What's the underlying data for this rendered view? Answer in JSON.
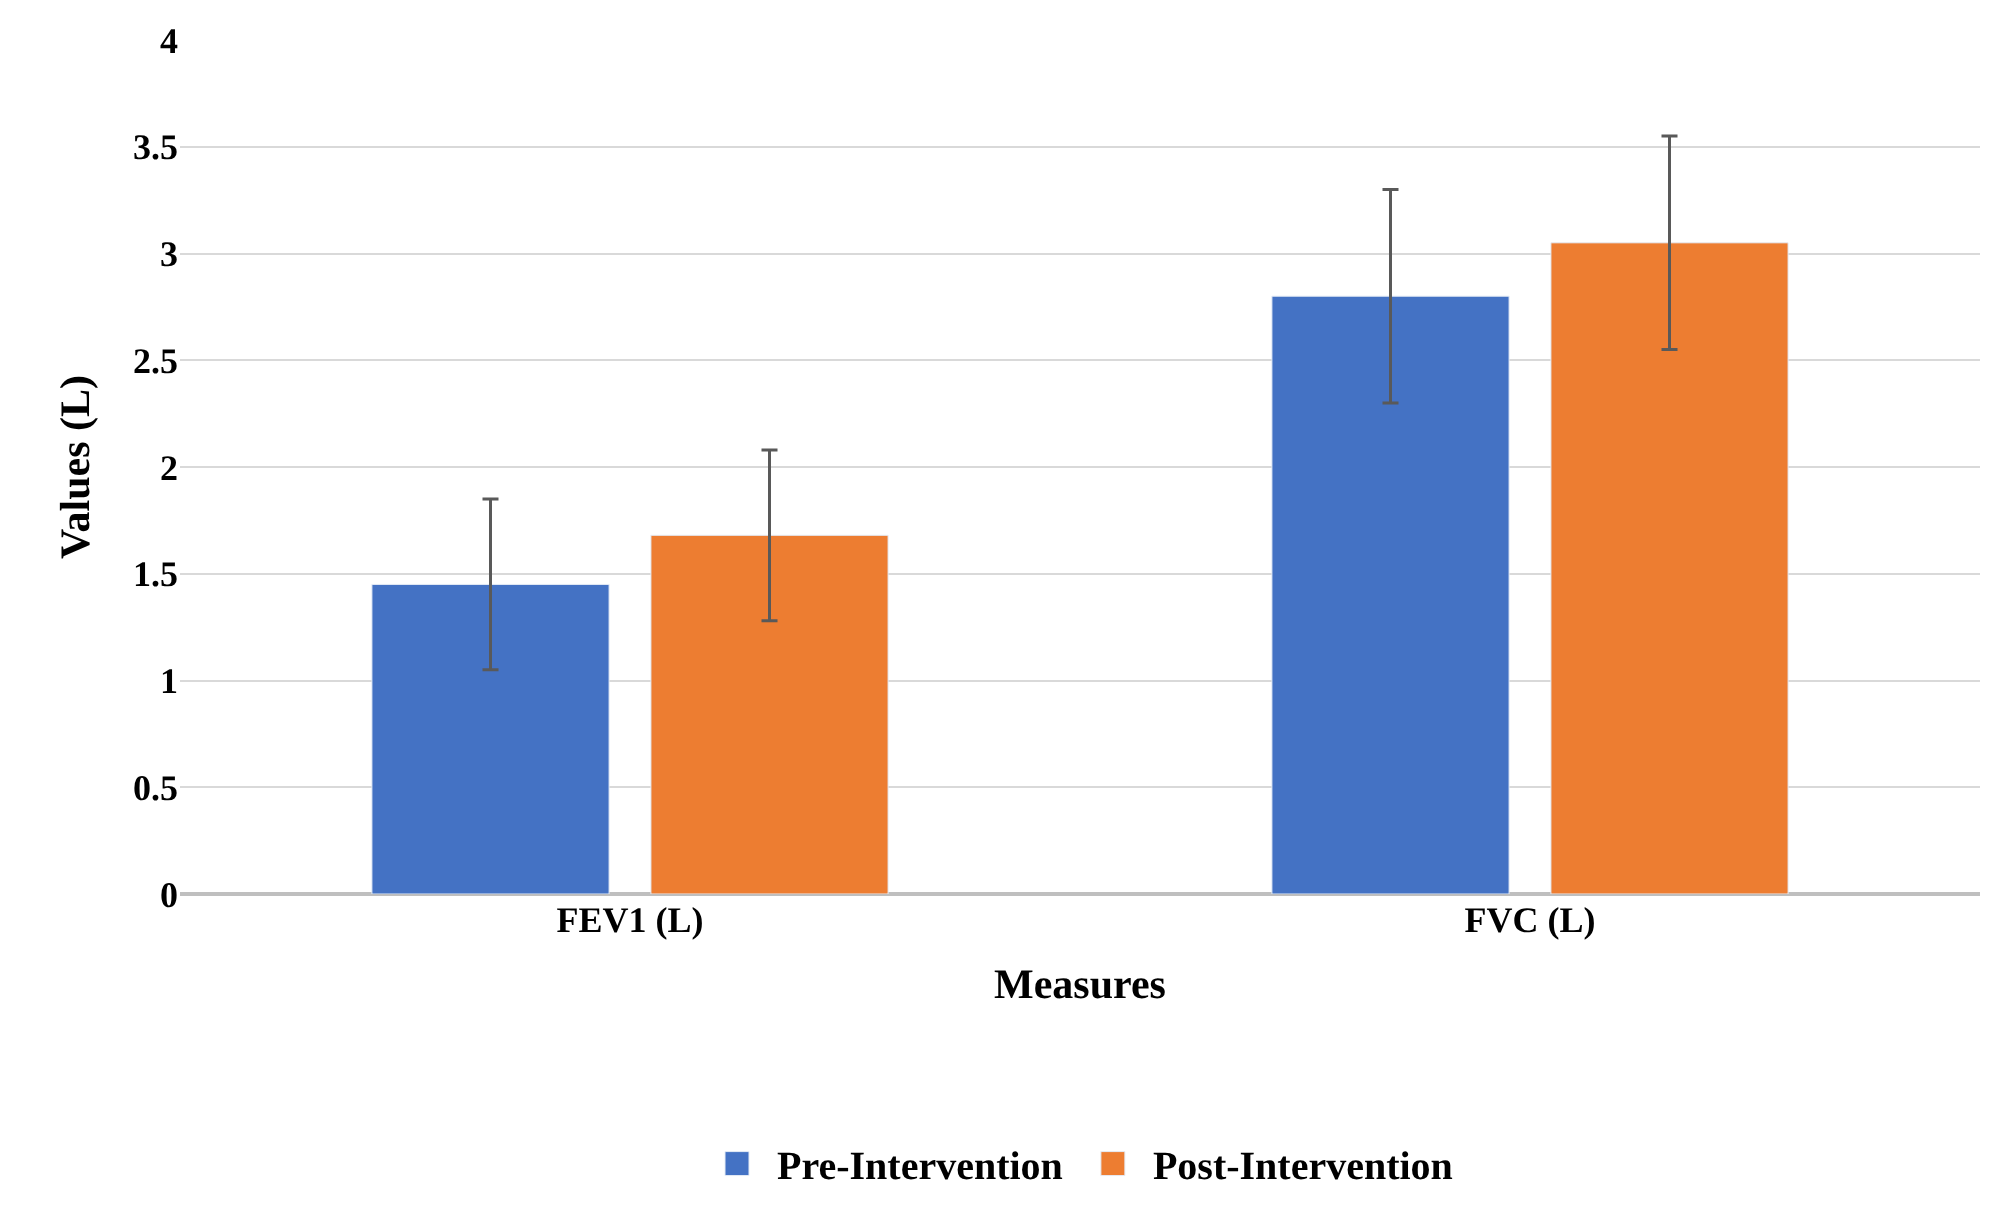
{
  "chart_data": {
    "type": "bar",
    "xlabel": "Measures",
    "ylabel": "Values (L)",
    "categories": [
      "FEV1 (L)",
      "FVC (L)"
    ],
    "series": [
      {
        "name": "Pre-Intervention",
        "color": "#4472c4",
        "values": [
          1.45,
          2.8
        ],
        "errors": [
          0.4,
          0.5
        ]
      },
      {
        "name": "Post-Intervention",
        "color": "#ed7d31",
        "values": [
          1.68,
          3.05
        ],
        "errors": [
          0.4,
          0.5
        ]
      }
    ],
    "ylim": [
      0,
      4
    ],
    "yticks": [
      0,
      0.5,
      1,
      1.5,
      2,
      2.5,
      3,
      3.5,
      4
    ],
    "grid": "y",
    "legend": "bottom"
  }
}
